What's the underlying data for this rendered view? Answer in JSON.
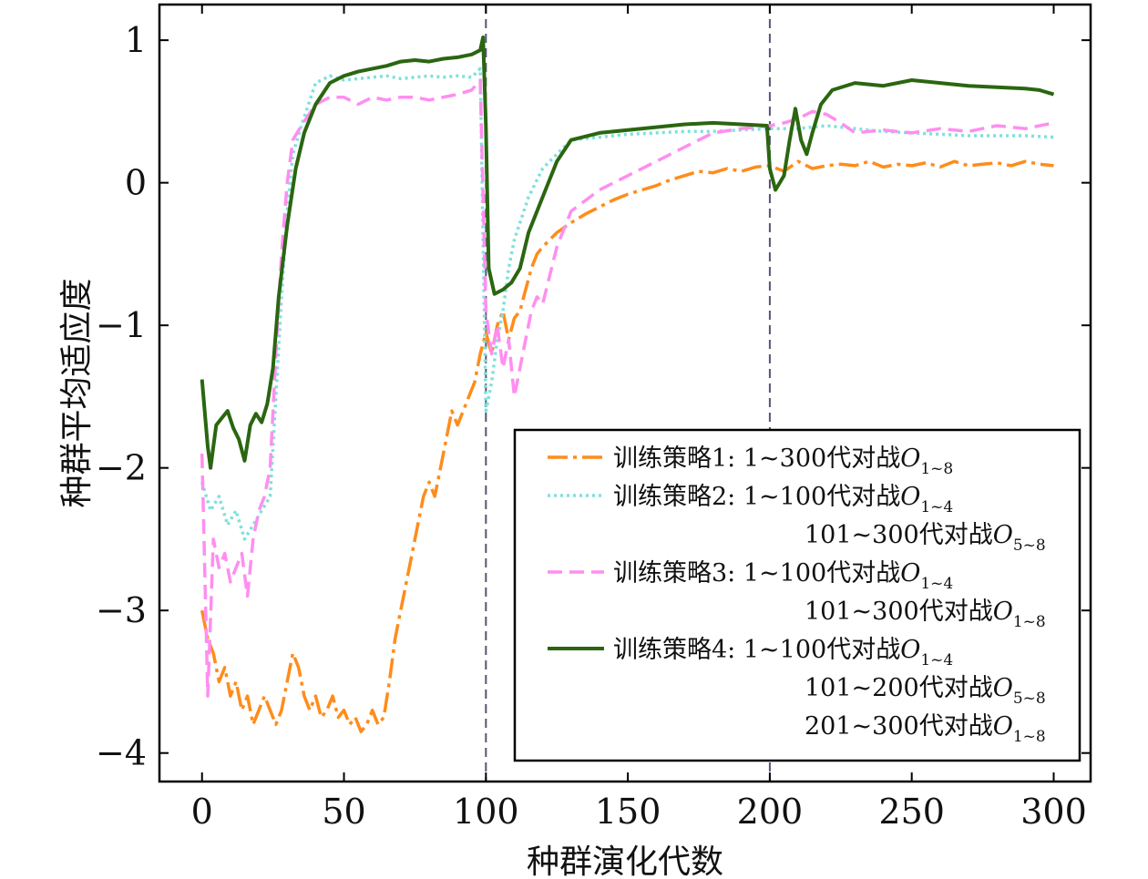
{
  "chart_data": {
    "type": "line",
    "xlabel": "种群演化代数",
    "ylabel": "种群平均适应度",
    "xlim": [
      -15,
      313
    ],
    "ylim": [
      -4.2,
      1.25
    ],
    "xticks": [
      "0",
      "50",
      "100",
      "150",
      "200",
      "250",
      "300"
    ],
    "yticks": [
      "−4",
      "−3",
      "−2",
      "−1",
      "0",
      "1"
    ],
    "xtick_values": [
      0,
      50,
      100,
      150,
      200,
      250,
      300
    ],
    "ytick_values": [
      -4,
      -3,
      -2,
      -1,
      0,
      1
    ],
    "vlines": [
      100,
      200
    ],
    "legend_position": "lower-right",
    "series": [
      {
        "name": "训练策略1",
        "legend_text": "训练策略1: 1~300代对战",
        "legend_extra": [],
        "legend_sub": "1~8",
        "color": "#ff8c1a",
        "dash": "22,6,4,6",
        "x": [
          0,
          2,
          4,
          6,
          8,
          10,
          12,
          14,
          16,
          18,
          20,
          22,
          24,
          26,
          28,
          30,
          32,
          34,
          36,
          38,
          40,
          42,
          44,
          46,
          48,
          50,
          52,
          54,
          56,
          58,
          60,
          62,
          64,
          66,
          68,
          70,
          72,
          74,
          76,
          78,
          80,
          82,
          84,
          86,
          88,
          90,
          92,
          94,
          96,
          98,
          100,
          102,
          104,
          106,
          108,
          110,
          112,
          114,
          116,
          118,
          120,
          125,
          130,
          135,
          140,
          145,
          150,
          155,
          160,
          165,
          170,
          175,
          180,
          185,
          190,
          195,
          200,
          205,
          210,
          215,
          220,
          225,
          230,
          235,
          240,
          245,
          250,
          255,
          260,
          265,
          270,
          275,
          280,
          285,
          290,
          295,
          300
        ],
        "y": [
          -3.0,
          -3.2,
          -3.3,
          -3.5,
          -3.4,
          -3.6,
          -3.5,
          -3.7,
          -3.6,
          -3.8,
          -3.7,
          -3.6,
          -3.7,
          -3.8,
          -3.7,
          -3.5,
          -3.3,
          -3.4,
          -3.6,
          -3.7,
          -3.6,
          -3.75,
          -3.7,
          -3.6,
          -3.75,
          -3.7,
          -3.8,
          -3.75,
          -3.85,
          -3.8,
          -3.7,
          -3.8,
          -3.75,
          -3.5,
          -3.2,
          -3.0,
          -2.8,
          -2.6,
          -2.4,
          -2.2,
          -2.1,
          -2.2,
          -2.0,
          -1.8,
          -1.6,
          -1.7,
          -1.6,
          -1.5,
          -1.4,
          -1.2,
          -1.05,
          -1.2,
          -1.0,
          -0.9,
          -1.1,
          -0.95,
          -0.9,
          -0.75,
          -0.6,
          -0.5,
          -0.45,
          -0.35,
          -0.28,
          -0.22,
          -0.17,
          -0.12,
          -0.08,
          -0.05,
          -0.02,
          0.02,
          0.05,
          0.08,
          0.07,
          0.1,
          0.08,
          0.11,
          0.12,
          0.08,
          0.15,
          0.1,
          0.12,
          0.13,
          0.12,
          0.15,
          0.11,
          0.13,
          0.12,
          0.14,
          0.11,
          0.15,
          0.12,
          0.13,
          0.14,
          0.12,
          0.15,
          0.13,
          0.12
        ]
      },
      {
        "name": "训练策略2",
        "legend_text": "训练策略2: 1~100代对战",
        "legend_extra": [
          "101~300代对战"
        ],
        "legend_sub": "1~4",
        "legend_extra_sub": [
          "5~8"
        ],
        "color": "#7fe0dc",
        "dash": "3,4",
        "x": [
          0,
          3,
          6,
          9,
          12,
          15,
          18,
          21,
          24,
          26,
          28,
          30,
          32,
          35,
          40,
          45,
          50,
          55,
          60,
          65,
          70,
          75,
          80,
          85,
          90,
          95,
          98,
          100,
          102,
          104,
          106,
          108,
          110,
          115,
          120,
          125,
          130,
          140,
          150,
          160,
          170,
          180,
          190,
          200,
          210,
          220,
          230,
          240,
          250,
          260,
          270,
          280,
          290,
          300
        ],
        "y": [
          -2.1,
          -2.3,
          -2.2,
          -2.4,
          -2.3,
          -2.5,
          -2.4,
          -2.3,
          -2.2,
          -1.5,
          -0.8,
          -0.2,
          0.2,
          0.4,
          0.7,
          0.75,
          0.72,
          0.73,
          0.74,
          0.75,
          0.73,
          0.74,
          0.75,
          0.74,
          0.75,
          0.74,
          0.8,
          -1.6,
          -1.4,
          -1.1,
          -0.9,
          -0.6,
          -0.4,
          -0.1,
          0.1,
          0.2,
          0.3,
          0.32,
          0.34,
          0.35,
          0.36,
          0.36,
          0.37,
          0.38,
          0.38,
          0.4,
          0.38,
          0.36,
          0.35,
          0.34,
          0.33,
          0.33,
          0.33,
          0.32
        ]
      },
      {
        "name": "训练策略3",
        "legend_text": "训练策略3: 1~100代对战",
        "legend_extra": [
          "101~300代对战"
        ],
        "legend_sub": "1~4",
        "legend_extra_sub": [
          "1~8"
        ],
        "color": "#ff8ef0",
        "dash": "16,8",
        "x": [
          0,
          2,
          4,
          6,
          8,
          10,
          12,
          14,
          16,
          18,
          20,
          22,
          24,
          26,
          28,
          30,
          32,
          35,
          40,
          45,
          50,
          55,
          60,
          65,
          70,
          75,
          80,
          85,
          90,
          95,
          98,
          100,
          102,
          104,
          106,
          108,
          110,
          112,
          114,
          116,
          118,
          120,
          125,
          130,
          140,
          150,
          160,
          170,
          180,
          190,
          200,
          205,
          210,
          215,
          220,
          225,
          230,
          240,
          250,
          260,
          270,
          280,
          290,
          300
        ],
        "y": [
          -1.9,
          -3.6,
          -2.5,
          -2.7,
          -2.6,
          -2.8,
          -2.7,
          -2.6,
          -2.9,
          -2.5,
          -2.3,
          -2.2,
          -2.0,
          -1.2,
          -0.5,
          0.0,
          0.3,
          0.4,
          0.55,
          0.6,
          0.6,
          0.55,
          0.6,
          0.58,
          0.6,
          0.6,
          0.58,
          0.6,
          0.62,
          0.65,
          0.72,
          -0.9,
          -1.2,
          -1.0,
          -1.3,
          -1.1,
          -1.5,
          -1.3,
          -1.1,
          -0.9,
          -0.8,
          -0.85,
          -0.45,
          -0.2,
          -0.05,
          0.05,
          0.15,
          0.25,
          0.35,
          0.38,
          0.4,
          0.42,
          0.45,
          0.5,
          0.48,
          0.42,
          0.35,
          0.37,
          0.35,
          0.38,
          0.36,
          0.4,
          0.38,
          0.42
        ]
      },
      {
        "name": "训练策略4",
        "legend_text": "训练策略4: 1~100代对战",
        "legend_extra": [
          "101~200代对战",
          "201~300代对战"
        ],
        "legend_sub": "1~4",
        "legend_extra_sub": [
          "5~8",
          "1~8"
        ],
        "color": "#2a6610",
        "dash": "",
        "x": [
          0,
          2,
          3,
          5,
          7,
          9,
          11,
          13,
          15,
          17,
          19,
          21,
          23,
          25,
          27,
          30,
          33,
          36,
          40,
          45,
          50,
          55,
          60,
          65,
          70,
          75,
          80,
          85,
          90,
          95,
          98,
          99,
          100,
          101,
          103,
          106,
          109,
          112,
          115,
          120,
          125,
          130,
          140,
          150,
          160,
          170,
          180,
          190,
          199,
          200,
          202,
          205,
          207,
          209,
          211,
          213,
          215,
          218,
          222,
          230,
          240,
          250,
          260,
          270,
          280,
          290,
          295,
          300
        ],
        "y": [
          -1.38,
          -1.85,
          -2.0,
          -1.7,
          -1.65,
          -1.6,
          -1.72,
          -1.8,
          -1.95,
          -1.7,
          -1.62,
          -1.68,
          -1.55,
          -1.3,
          -0.8,
          -0.3,
          0.1,
          0.35,
          0.55,
          0.7,
          0.75,
          0.78,
          0.8,
          0.82,
          0.85,
          0.86,
          0.85,
          0.87,
          0.88,
          0.9,
          0.93,
          1.02,
          0.4,
          -0.6,
          -0.78,
          -0.75,
          -0.7,
          -0.6,
          -0.35,
          -0.1,
          0.15,
          0.3,
          0.35,
          0.37,
          0.39,
          0.41,
          0.42,
          0.41,
          0.4,
          0.1,
          -0.05,
          0.05,
          0.3,
          0.52,
          0.3,
          0.2,
          0.35,
          0.55,
          0.65,
          0.7,
          0.68,
          0.72,
          0.7,
          0.68,
          0.67,
          0.66,
          0.65,
          0.62
        ]
      }
    ]
  }
}
